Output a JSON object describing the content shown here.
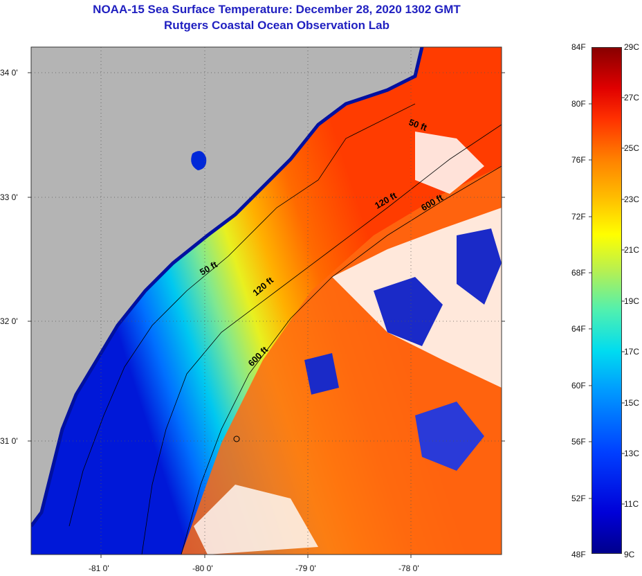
{
  "title_line1": "NOAA-15 Sea Surface Temperature:  December 28, 2020 1302 GMT",
  "title_line2": "Rutgers Coastal Ocean Observation Lab",
  "lat_labels": [
    "34 0'",
    "33 0'",
    "32 0'",
    "31 0'"
  ],
  "lon_labels": [
    "-81 0'",
    "-80 0'",
    "-79 0'",
    "-78 0'"
  ],
  "contour_labels": [
    "50 ft",
    "120 ft",
    "600 ft",
    "50 ft",
    "120 ft",
    "600 ft"
  ],
  "colorbar": {
    "fahrenheit": [
      "84F",
      "80F",
      "76F",
      "72F",
      "68F",
      "64F",
      "60F",
      "56F",
      "52F",
      "48F"
    ],
    "celsius": [
      "29C",
      "27C",
      "25C",
      "23C",
      "21C",
      "19C",
      "17C",
      "15C",
      "13C",
      "11C",
      "9C"
    ]
  },
  "colors": {
    "land": "#b4b4b4",
    "title": "#1f1fc0",
    "cloud": "#ffffff"
  }
}
